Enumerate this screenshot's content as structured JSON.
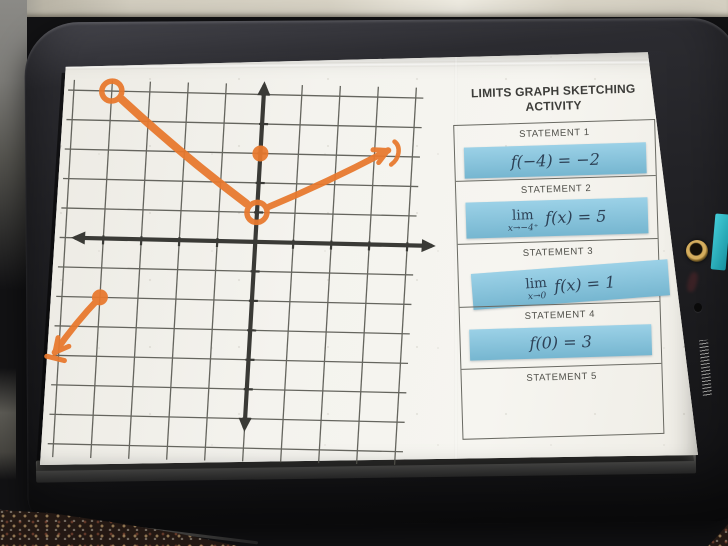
{
  "panel": {
    "title": [
      "LIMITS GRAPH SKETCHING",
      "ACTIVITY"
    ],
    "lim_label": "lim",
    "card_color": "#7fc4e0",
    "statements": [
      {
        "label": "STATEMENT 1",
        "formula": "f(−4) = −2"
      },
      {
        "label": "STATEMENT 2",
        "limit_sub": "x→−4⁺",
        "formula": "f(x) = 5"
      },
      {
        "label": "STATEMENT 3",
        "limit_sub": "x→0",
        "formula": "f(x) = 1"
      },
      {
        "label": "STATEMENT 4",
        "formula": "f(0) = 3"
      },
      {
        "label": "STATEMENT 5"
      }
    ]
  },
  "graph": {
    "stroke_color": "#e8792e",
    "x_range": [
      -5,
      4
    ],
    "y_range": [
      -7,
      5
    ],
    "open_points": [
      {
        "x": -4,
        "y": 5
      },
      {
        "x": 0,
        "y": 1
      }
    ],
    "closed_points": [
      {
        "x": 0,
        "y": 3
      },
      {
        "x": -4,
        "y": -2
      }
    ],
    "segments": [
      {
        "from": [
          -4,
          5
        ],
        "to": [
          0,
          1
        ]
      }
    ],
    "rays": [
      {
        "from": [
          0,
          1
        ],
        "toward": [
          3.35,
          3.2
        ],
        "tip": "hook"
      },
      {
        "from": [
          -4,
          -2
        ],
        "toward": [
          -5.1,
          -3.9
        ],
        "tip": "smudge"
      }
    ]
  }
}
